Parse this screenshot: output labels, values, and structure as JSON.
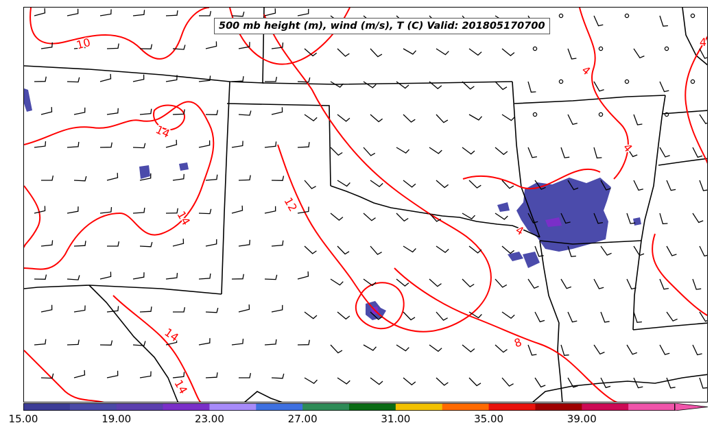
{
  "title": "500 mb height (m), wind (m/s), T (C) Valid: 201805170700",
  "colorbar": {
    "ticks": [
      "15.00",
      "19.00",
      "23.00",
      "27.00",
      "31.00",
      "35.00",
      "39.00"
    ],
    "colors": [
      "#3c3c96",
      "#4a4aa6",
      "#5b3fae",
      "#7a2fc8",
      "#a78bfa",
      "#3e70e0",
      "#2e8b57",
      "#0a6b14",
      "#f2c100",
      "#ff6a00",
      "#e8120c",
      "#9e0000",
      "#cc0a55",
      "#f055aa"
    ]
  },
  "contour_labels": [
    {
      "text": "10",
      "rot": -15
    },
    {
      "text": "14",
      "rot": 25
    },
    {
      "text": "14",
      "rot": 60
    },
    {
      "text": "12",
      "rot": 60
    },
    {
      "text": "14",
      "rot": 35
    },
    {
      "text": "14",
      "rot": 60
    },
    {
      "text": "4",
      "rot": 0
    },
    {
      "text": "4",
      "rot": 40
    },
    {
      "text": "4",
      "rot": 50
    },
    {
      "text": "4",
      "rot": 30
    },
    {
      "text": "8",
      "rot": -20
    }
  ],
  "colors": {
    "contour": "#ff0000",
    "border": "#000000",
    "precip": "#4b4bab"
  }
}
